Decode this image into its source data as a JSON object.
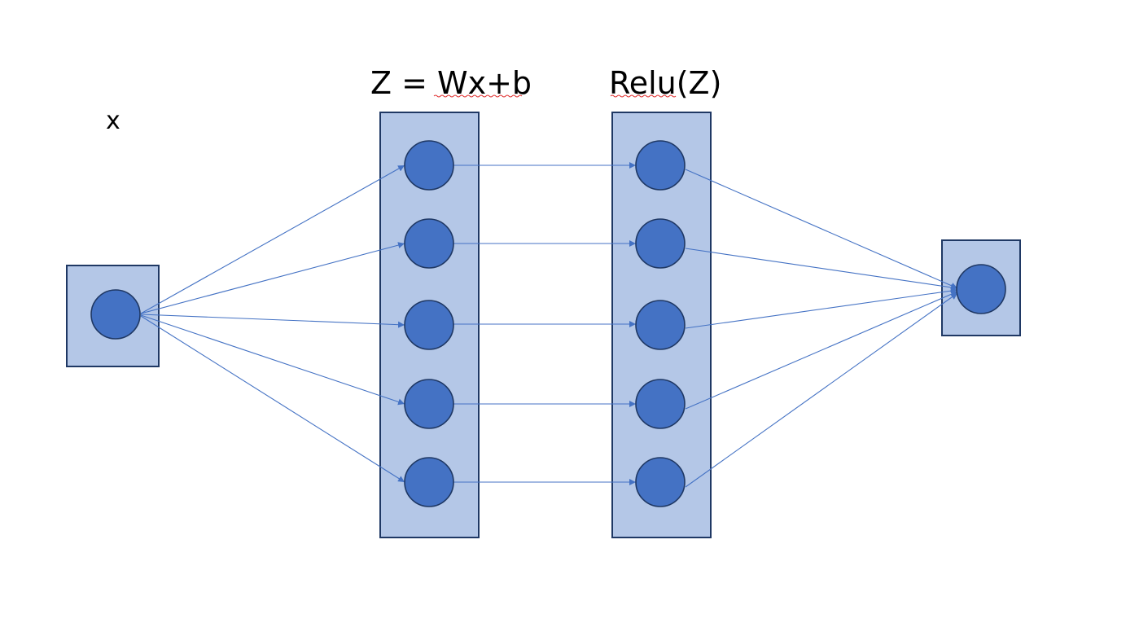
{
  "labels": {
    "input": "x",
    "linear_layer": "Z = Wx+b",
    "activation_layer": "Relu(Z)"
  },
  "colors": {
    "box_fill": "#b4c7e7",
    "box_stroke": "#1f3864",
    "node_fill": "#4472c4",
    "edge": "#4472c4",
    "spellcheck_underline": "#e03030"
  },
  "structure": {
    "input_nodes": 1,
    "linear_nodes": 5,
    "activation_nodes": 5,
    "output_nodes": 1,
    "connections": [
      "input -> every linear node",
      "linear node i -> activation node i",
      "every activation node -> output"
    ]
  }
}
